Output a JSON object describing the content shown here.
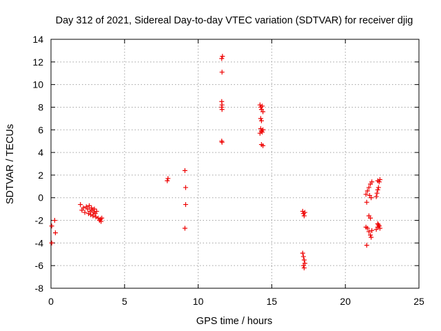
{
  "chart_data": {
    "type": "scatter",
    "title": "Day 312 of 2021, Sidereal Day-to-day VTEC variation (SDTVAR) for receiver djig",
    "xlabel": "GPS time / hours",
    "ylabel": "SDTVAR / TECUs",
    "xlim": [
      0,
      25
    ],
    "ylim": [
      -8,
      14
    ],
    "xticks": [
      0,
      5,
      10,
      15,
      20,
      25
    ],
    "yticks": [
      -8,
      -6,
      -4,
      -2,
      0,
      2,
      4,
      6,
      8,
      10,
      12,
      14
    ],
    "grid": true,
    "marker": "plus",
    "color": "#ee0000",
    "series": [
      {
        "points": [
          [
            0.05,
            -2.5
          ],
          [
            0.05,
            -4.0
          ],
          [
            0.25,
            -2.0
          ],
          [
            0.3,
            -3.1
          ],
          [
            2.0,
            -0.6
          ],
          [
            2.1,
            -1.1
          ],
          [
            2.2,
            -0.9
          ],
          [
            2.3,
            -1.3
          ],
          [
            2.4,
            -0.8
          ],
          [
            2.5,
            -1.0
          ],
          [
            2.55,
            -1.4
          ],
          [
            2.6,
            -0.7
          ],
          [
            2.65,
            -1.2
          ],
          [
            2.7,
            -1.5
          ],
          [
            2.75,
            -0.9
          ],
          [
            2.8,
            -1.1
          ],
          [
            2.85,
            -1.6
          ],
          [
            2.9,
            -1.3
          ],
          [
            2.95,
            -1.0
          ],
          [
            3.0,
            -1.4
          ],
          [
            3.05,
            -1.7
          ],
          [
            3.1,
            -1.2
          ],
          [
            3.2,
            -1.8
          ],
          [
            3.3,
            -2.0
          ],
          [
            3.35,
            -1.9
          ],
          [
            3.4,
            -2.1
          ],
          [
            3.45,
            -1.8
          ],
          [
            7.9,
            1.5
          ],
          [
            7.95,
            1.7
          ],
          [
            9.1,
            2.4
          ],
          [
            9.15,
            0.9
          ],
          [
            9.15,
            -0.6
          ],
          [
            9.1,
            -2.7
          ],
          [
            11.6,
            12.3
          ],
          [
            11.65,
            12.5
          ],
          [
            11.62,
            11.1
          ],
          [
            11.6,
            8.5
          ],
          [
            11.62,
            8.2
          ],
          [
            11.6,
            8.0
          ],
          [
            11.62,
            7.8
          ],
          [
            11.6,
            5.0
          ],
          [
            11.62,
            4.9
          ],
          [
            14.2,
            8.2
          ],
          [
            14.25,
            8.0
          ],
          [
            14.3,
            7.8
          ],
          [
            14.35,
            8.1
          ],
          [
            14.4,
            7.6
          ],
          [
            14.25,
            7.0
          ],
          [
            14.3,
            6.8
          ],
          [
            14.25,
            6.1
          ],
          [
            14.3,
            5.9
          ],
          [
            14.35,
            5.8
          ],
          [
            14.4,
            6.0
          ],
          [
            14.2,
            5.7
          ],
          [
            14.3,
            4.7
          ],
          [
            14.4,
            4.6
          ],
          [
            17.1,
            -1.2
          ],
          [
            17.15,
            -1.4
          ],
          [
            17.2,
            -1.6
          ],
          [
            17.25,
            -1.3
          ],
          [
            17.1,
            -4.9
          ],
          [
            17.15,
            -5.2
          ],
          [
            17.2,
            -5.5
          ],
          [
            17.25,
            -5.8
          ],
          [
            17.15,
            -6.0
          ],
          [
            17.2,
            -6.2
          ],
          [
            21.4,
            0.3
          ],
          [
            21.5,
            0.6
          ],
          [
            21.6,
            0.9
          ],
          [
            21.7,
            1.2
          ],
          [
            21.8,
            1.4
          ],
          [
            21.65,
            0.2
          ],
          [
            21.75,
            0.0
          ],
          [
            21.45,
            -0.4
          ],
          [
            21.6,
            -1.6
          ],
          [
            21.7,
            -1.8
          ],
          [
            21.4,
            -2.6
          ],
          [
            21.5,
            -2.7
          ],
          [
            21.6,
            -3.0
          ],
          [
            21.7,
            -3.3
          ],
          [
            21.75,
            -3.5
          ],
          [
            21.8,
            -2.9
          ],
          [
            21.45,
            -4.2
          ],
          [
            22.1,
            0.1
          ],
          [
            22.15,
            0.4
          ],
          [
            22.2,
            0.7
          ],
          [
            22.25,
            0.9
          ],
          [
            22.3,
            1.4
          ],
          [
            22.35,
            1.6
          ],
          [
            22.2,
            1.5
          ],
          [
            22.2,
            -2.3
          ],
          [
            22.3,
            -2.5
          ],
          [
            22.35,
            -2.7
          ],
          [
            22.1,
            -2.8
          ],
          [
            22.2,
            -2.6
          ],
          [
            22.25,
            -2.4
          ]
        ]
      }
    ]
  }
}
